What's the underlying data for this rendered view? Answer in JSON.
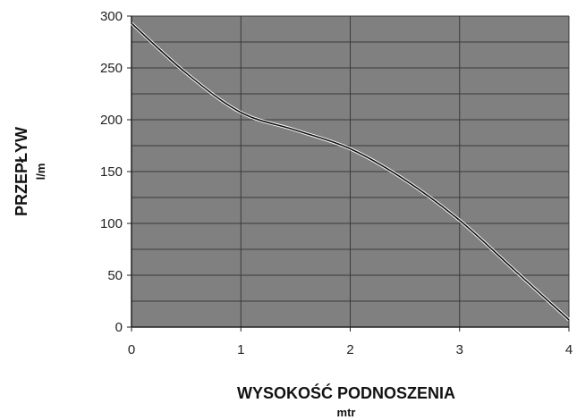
{
  "chart_data": {
    "type": "line",
    "title": "",
    "xlabel": "WYSOKOŚĆ PODNOSZENIA",
    "xunit": "mtr",
    "ylabel": "PRZEPŁYW",
    "yunit": "l/m",
    "xlim": [
      0,
      4
    ],
    "ylim": [
      0,
      300
    ],
    "xticks": [
      "0",
      "1",
      "2",
      "3",
      "4"
    ],
    "yticks": [
      "0",
      "50",
      "100",
      "150",
      "200",
      "250",
      "300"
    ],
    "grid": true,
    "colors": {
      "plot_background": "#808080",
      "grid": "#3a3a3a",
      "line": "#111111",
      "line_highlight": "#ffffff"
    },
    "series": [
      {
        "x": [
          0,
          0.5,
          1,
          1.5,
          2,
          2.5,
          3,
          3.5,
          4
        ],
        "values": [
          293,
          245,
          207,
          190,
          172,
          142,
          103,
          55,
          7
        ]
      }
    ]
  }
}
